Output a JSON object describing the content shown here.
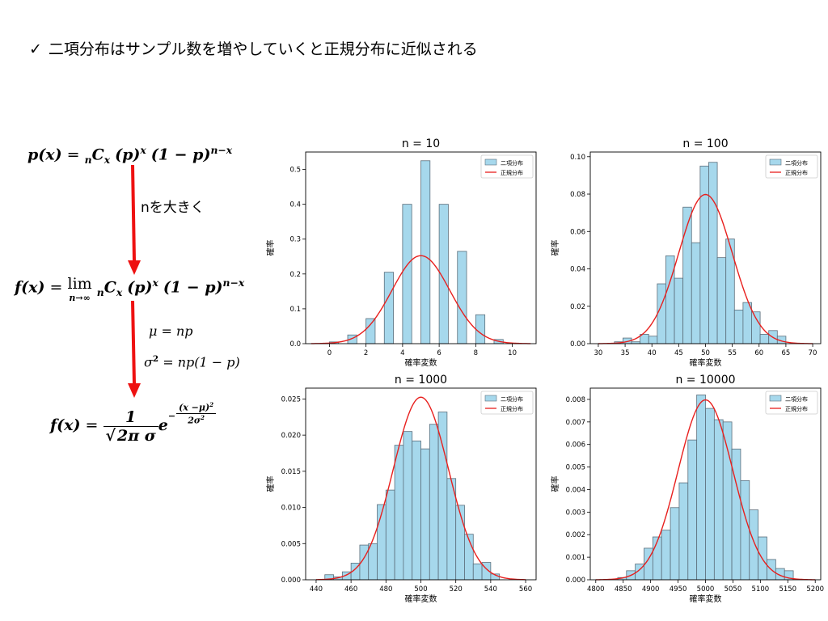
{
  "headline": {
    "check": "✓",
    "text": "二項分布はサンプル数を増やしていくと正規分布に近似される"
  },
  "annotations": {
    "arrow1_label": "nを大きく",
    "mu": "μ = np",
    "sigma_lhs": "σ",
    "sigma_exp": "2",
    "sigma_rhs": " = np(1 − p)"
  },
  "formulas": {
    "f1_lhs": "p(x)",
    "f1_eq": "=",
    "f1_sub": "n",
    "f1_C": "C",
    "f1_Csub": "x",
    "f1_p": "(p)",
    "f1_pexp": "x",
    "f1_q": "(1 − p)",
    "f1_qexp": "n−x",
    "f2_lhs": "f(x)",
    "f2_eq": "=",
    "f2_lim": "lim",
    "f2_limsub": "n→∞",
    "f3_lhs": "f(x)",
    "f3_eq": "=",
    "f3_num": "1",
    "f3_den_sqrt": "2π",
    "f3_den_sigma": "σ",
    "f3_e": "e",
    "f3_exp_num": "(x −μ)",
    "f3_exp_num_sup": "2",
    "f3_exp_den": "2σ",
    "f3_exp_den_sup": "2",
    "f3_minus": "−"
  },
  "colors": {
    "bar_fill": "#a6d8ec",
    "bar_edge": "#5c6f7c",
    "normal_line": "#e8201e",
    "arrow": "#ee1111"
  },
  "chart_data": [
    {
      "type": "bar",
      "title": "n = 10",
      "xlabel": "確率変数",
      "ylabel": "確率",
      "legend": [
        "二項分布",
        "正規分布"
      ],
      "legend_position": "top-right",
      "xlim": [
        -1.3,
        11.3
      ],
      "ylim": [
        0,
        0.55
      ],
      "xticks": [
        0,
        2,
        4,
        6,
        8,
        10
      ],
      "yticks": [
        0.0,
        0.1,
        0.2,
        0.3,
        0.4,
        0.5
      ],
      "ytick_labels": [
        "0.0",
        "0.1",
        "0.2",
        "0.3",
        "0.4",
        "0.5"
      ],
      "bins": [
        {
          "start": 0.0,
          "end": 0.5,
          "value": 0.005
        },
        {
          "start": 1.0,
          "end": 1.5,
          "value": 0.025
        },
        {
          "start": 2.0,
          "end": 2.5,
          "value": 0.072
        },
        {
          "start": 3.0,
          "end": 3.5,
          "value": 0.205
        },
        {
          "start": 4.0,
          "end": 4.5,
          "value": 0.4
        },
        {
          "start": 5.0,
          "end": 5.5,
          "value": 0.525
        },
        {
          "start": 6.0,
          "end": 6.5,
          "value": 0.4
        },
        {
          "start": 7.0,
          "end": 7.5,
          "value": 0.265
        },
        {
          "start": 8.0,
          "end": 8.5,
          "value": 0.083
        },
        {
          "start": 9.0,
          "end": 9.5,
          "value": 0.012
        }
      ],
      "normal": {
        "mu": 5,
        "sigma": 1.58,
        "x_range": [
          -1,
          11
        ]
      }
    },
    {
      "type": "bar",
      "title": "n = 100",
      "xlabel": "確率変数",
      "ylabel": "確率",
      "legend": [
        "二項分布",
        "正規分布"
      ],
      "legend_position": "top-right",
      "xlim": [
        28.5,
        71.5
      ],
      "ylim": [
        0,
        0.1025
      ],
      "xticks": [
        30,
        35,
        40,
        45,
        50,
        55,
        60,
        65,
        70
      ],
      "yticks": [
        0.0,
        0.02,
        0.04,
        0.06,
        0.08,
        0.1
      ],
      "ytick_labels": [
        "0.00",
        "0.02",
        "0.04",
        "0.06",
        "0.08",
        "0.10"
      ],
      "bins": [
        {
          "start": 33.0,
          "end": 34.6,
          "value": 0.001
        },
        {
          "start": 34.6,
          "end": 36.2,
          "value": 0.003
        },
        {
          "start": 36.2,
          "end": 37.8,
          "value": 0.001
        },
        {
          "start": 37.8,
          "end": 39.4,
          "value": 0.005
        },
        {
          "start": 39.4,
          "end": 41.0,
          "value": 0.004
        },
        {
          "start": 41.0,
          "end": 42.6,
          "value": 0.032
        },
        {
          "start": 42.6,
          "end": 44.2,
          "value": 0.047
        },
        {
          "start": 44.2,
          "end": 45.8,
          "value": 0.035
        },
        {
          "start": 45.8,
          "end": 47.4,
          "value": 0.073
        },
        {
          "start": 47.4,
          "end": 49.0,
          "value": 0.054
        },
        {
          "start": 49.0,
          "end": 50.6,
          "value": 0.095
        },
        {
          "start": 50.6,
          "end": 52.2,
          "value": 0.097
        },
        {
          "start": 52.2,
          "end": 53.8,
          "value": 0.046
        },
        {
          "start": 53.8,
          "end": 55.4,
          "value": 0.056
        },
        {
          "start": 55.4,
          "end": 57.0,
          "value": 0.018
        },
        {
          "start": 57.0,
          "end": 58.6,
          "value": 0.022
        },
        {
          "start": 58.6,
          "end": 60.2,
          "value": 0.017
        },
        {
          "start": 60.2,
          "end": 61.8,
          "value": 0.005
        },
        {
          "start": 61.8,
          "end": 63.4,
          "value": 0.007
        },
        {
          "start": 63.4,
          "end": 65.0,
          "value": 0.004
        }
      ],
      "normal": {
        "mu": 50,
        "sigma": 5,
        "x_range": [
          30,
          70
        ]
      }
    },
    {
      "type": "bar",
      "title": "n = 1000",
      "xlabel": "確率変数",
      "ylabel": "確率",
      "legend": [
        "二項分布",
        "正規分布"
      ],
      "legend_position": "top-right",
      "xlim": [
        434,
        566
      ],
      "ylim": [
        0,
        0.0265
      ],
      "xticks": [
        440,
        460,
        480,
        500,
        520,
        540,
        560
      ],
      "yticks": [
        0.0,
        0.005,
        0.01,
        0.015,
        0.02,
        0.025
      ],
      "ytick_labels": [
        "0.000",
        "0.005",
        "0.010",
        "0.015",
        "0.020",
        "0.025"
      ],
      "bins": [
        {
          "start": 445.0,
          "end": 450.0,
          "value": 0.0007
        },
        {
          "start": 450.0,
          "end": 455.0,
          "value": 0.0004
        },
        {
          "start": 455.0,
          "end": 460.0,
          "value": 0.0011
        },
        {
          "start": 460.0,
          "end": 465.0,
          "value": 0.0023
        },
        {
          "start": 465.0,
          "end": 470.0,
          "value": 0.0048
        },
        {
          "start": 470.0,
          "end": 475.0,
          "value": 0.005
        },
        {
          "start": 475.0,
          "end": 480.0,
          "value": 0.0104
        },
        {
          "start": 480.0,
          "end": 485.0,
          "value": 0.0124
        },
        {
          "start": 485.0,
          "end": 490.0,
          "value": 0.0186
        },
        {
          "start": 490.0,
          "end": 495.0,
          "value": 0.0205
        },
        {
          "start": 495.0,
          "end": 500.0,
          "value": 0.0192
        },
        {
          "start": 500.0,
          "end": 505.0,
          "value": 0.0181
        },
        {
          "start": 505.0,
          "end": 510.0,
          "value": 0.0215
        },
        {
          "start": 510.0,
          "end": 515.0,
          "value": 0.0232
        },
        {
          "start": 515.0,
          "end": 520.0,
          "value": 0.014
        },
        {
          "start": 520.0,
          "end": 525.0,
          "value": 0.0103
        },
        {
          "start": 525.0,
          "end": 530.0,
          "value": 0.0063
        },
        {
          "start": 530.0,
          "end": 535.0,
          "value": 0.0022
        },
        {
          "start": 535.0,
          "end": 540.0,
          "value": 0.0024
        },
        {
          "start": 540.0,
          "end": 545.0,
          "value": 0.0008
        }
      ],
      "normal": {
        "mu": 500,
        "sigma": 15.8,
        "x_range": [
          440,
          560
        ]
      }
    },
    {
      "type": "bar",
      "title": "n = 10000",
      "xlabel": "確率変数",
      "ylabel": "確率",
      "legend": [
        "二項分布",
        "正規分布"
      ],
      "legend_position": "top-right",
      "xlim": [
        4790,
        5210
      ],
      "ylim": [
        0,
        0.0085
      ],
      "xticks": [
        4800,
        4850,
        4900,
        4950,
        5000,
        5050,
        5100,
        5150,
        5200
      ],
      "yticks": [
        0.0,
        0.001,
        0.002,
        0.003,
        0.004,
        0.005,
        0.006,
        0.007,
        0.008
      ],
      "ytick_labels": [
        "0.000",
        "0.001",
        "0.002",
        "0.003",
        "0.004",
        "0.005",
        "0.006",
        "0.007",
        "0.008"
      ],
      "bins": [
        {
          "start": 4840,
          "end": 4856,
          "value": 0.0001
        },
        {
          "start": 4856,
          "end": 4872,
          "value": 0.0004
        },
        {
          "start": 4872,
          "end": 4888,
          "value": 0.0007
        },
        {
          "start": 4888,
          "end": 4904,
          "value": 0.0014
        },
        {
          "start": 4904,
          "end": 4920,
          "value": 0.0019
        },
        {
          "start": 4920,
          "end": 4936,
          "value": 0.0022
        },
        {
          "start": 4936,
          "end": 4952,
          "value": 0.0032
        },
        {
          "start": 4952,
          "end": 4968,
          "value": 0.0043
        },
        {
          "start": 4968,
          "end": 4984,
          "value": 0.0062
        },
        {
          "start": 4984,
          "end": 5000,
          "value": 0.0082
        },
        {
          "start": 5000,
          "end": 5016,
          "value": 0.0076
        },
        {
          "start": 5016,
          "end": 5032,
          "value": 0.0071
        },
        {
          "start": 5032,
          "end": 5048,
          "value": 0.007
        },
        {
          "start": 5048,
          "end": 5064,
          "value": 0.0058
        },
        {
          "start": 5064,
          "end": 5080,
          "value": 0.0044
        },
        {
          "start": 5080,
          "end": 5096,
          "value": 0.0031
        },
        {
          "start": 5096,
          "end": 5112,
          "value": 0.0019
        },
        {
          "start": 5112,
          "end": 5128,
          "value": 0.0009
        },
        {
          "start": 5128,
          "end": 5144,
          "value": 0.0005
        },
        {
          "start": 5144,
          "end": 5160,
          "value": 0.0004
        }
      ],
      "normal": {
        "mu": 5000,
        "sigma": 50,
        "x_range": [
          4800,
          5200
        ]
      }
    }
  ]
}
